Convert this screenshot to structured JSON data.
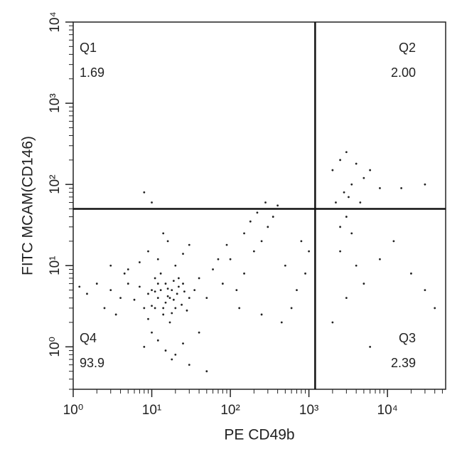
{
  "chart_data": {
    "type": "scatter",
    "log_x": true,
    "log_y": true,
    "x_label": "PE CD49b",
    "y_label": "FITC MCAM(CD146)",
    "xlim": [
      1,
      55000
    ],
    "ylim": [
      0.3,
      10000
    ],
    "xticks": [
      {
        "value": 1,
        "label": "10⁰"
      },
      {
        "value": 10,
        "label": "10¹"
      },
      {
        "value": 100,
        "label": "10²"
      },
      {
        "value": 1000,
        "label": "10³"
      },
      {
        "value": 10000,
        "label": "10⁴"
      }
    ],
    "yticks": [
      {
        "value": 1,
        "label": "10⁰"
      },
      {
        "value": 10,
        "label": "10¹"
      },
      {
        "value": 100,
        "label": "10²"
      },
      {
        "value": 1000,
        "label": "10³"
      },
      {
        "value": 10000,
        "label": "10⁴"
      }
    ],
    "gate_x": 1200,
    "gate_y": 50,
    "color": "#222222",
    "quadrants": [
      {
        "name": "Q1",
        "value": 1.69
      },
      {
        "name": "Q2",
        "value": 2,
        "value_label": "2.00"
      },
      {
        "name": "Q3",
        "value": 2.39
      },
      {
        "name": "Q4",
        "value": 93.9
      }
    ],
    "x": [
      12,
      15,
      18,
      9,
      20,
      25,
      14,
      11,
      16,
      22,
      8,
      30,
      13,
      17,
      10,
      19,
      24,
      7,
      28,
      35,
      6,
      5,
      4,
      3,
      2.5,
      2,
      1.5,
      1.2,
      3.5,
      4.5,
      40,
      50,
      60,
      80,
      100,
      120,
      150,
      200,
      250,
      300,
      350,
      400,
      180,
      220,
      280,
      150,
      90,
      70,
      130,
      250,
      500,
      700,
      800,
      600,
      900,
      1000,
      450,
      12,
      15,
      20,
      10,
      25,
      30,
      8,
      18,
      40,
      50,
      12,
      9,
      16,
      20,
      7,
      25,
      5,
      3,
      14,
      30,
      8,
      10,
      2000,
      2500,
      3000,
      3500,
      4000,
      2800,
      5000,
      8000,
      2200,
      3200,
      15000,
      30000,
      6000,
      4500,
      3000,
      3500,
      2500,
      4000,
      5000,
      3000,
      2000,
      8000,
      12000,
      20000,
      30000,
      40000,
      6000,
      2500,
      11,
      13,
      15,
      17,
      19,
      21,
      14,
      16,
      18,
      12,
      10,
      9,
      22,
      26,
      11
    ],
    "y": [
      4,
      3.5,
      5,
      4.5,
      3,
      6,
      2.5,
      7,
      4.2,
      5.5,
      3,
      4,
      8,
      2,
      5,
      6.5,
      3.3,
      5.5,
      2.8,
      5,
      3.8,
      6,
      4,
      5,
      3,
      6,
      4.5,
      5.5,
      2.5,
      8,
      7,
      4,
      9,
      6,
      12,
      5,
      8,
      15,
      20,
      30,
      40,
      55,
      35,
      45,
      60,
      25,
      18,
      12,
      3,
      2.5,
      10,
      5,
      20,
      3,
      8,
      15,
      2,
      1.2,
      0.9,
      0.8,
      1.5,
      1.1,
      0.6,
      1,
      0.7,
      1.5,
      0.5,
      12,
      15,
      20,
      10,
      11,
      14,
      9,
      10,
      25,
      18,
      80,
      60,
      150,
      200,
      250,
      100,
      180,
      80,
      120,
      90,
      60,
      70,
      90,
      100,
      150,
      60,
      40,
      25,
      15,
      10,
      6,
      4,
      2,
      12,
      20,
      8,
      5,
      3,
      1,
      30,
      3,
      5,
      6,
      4,
      3.8,
      4.5,
      3,
      5.2,
      2.6,
      6,
      3.2,
      2.2,
      7,
      4.8,
      4.8
    ]
  }
}
